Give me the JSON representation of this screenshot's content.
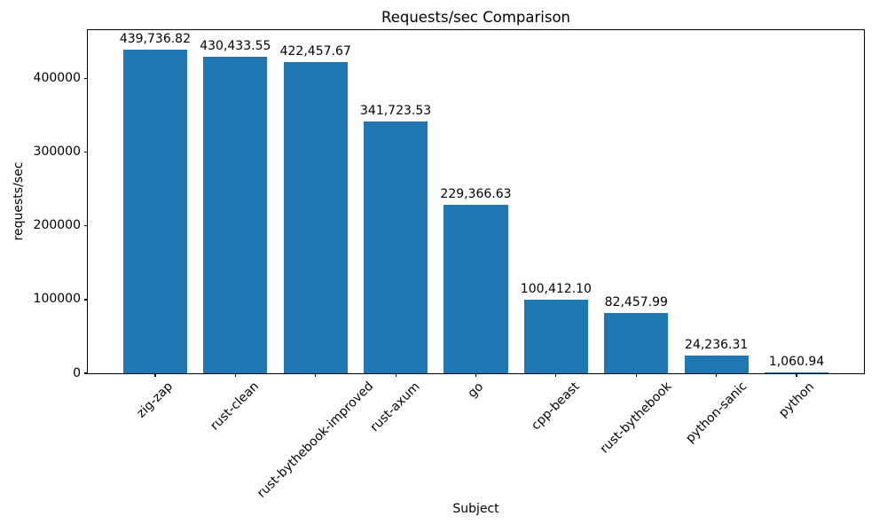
{
  "chart_data": {
    "type": "bar",
    "title": "Requests/sec Comparison",
    "xlabel": "Subject",
    "ylabel": "requests/sec",
    "categories": [
      "zig-zap",
      "rust-clean",
      "rust-bythebook-improved",
      "rust-axum",
      "go",
      "cpp-beast",
      "rust-bythebook",
      "python-sanic",
      "python"
    ],
    "values": [
      439736.82,
      430433.55,
      422457.67,
      341723.53,
      229366.63,
      100412.1,
      82457.99,
      24236.31,
      1060.94
    ],
    "value_labels": [
      "439,736.82",
      "430,433.55",
      "422,457.67",
      "341,723.53",
      "229,366.63",
      "100,412.10",
      "82,457.99",
      "24,236.31",
      "1,060.94"
    ],
    "yticks": [
      0,
      100000,
      200000,
      300000,
      400000
    ],
    "ylim": [
      0,
      466000
    ],
    "bar_color": "#1f77b4",
    "grid": false,
    "legend_position": "none"
  }
}
